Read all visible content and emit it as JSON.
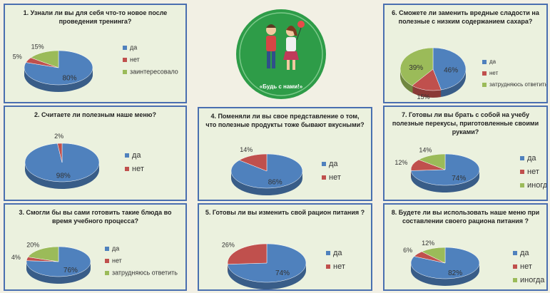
{
  "logo": {
    "caption": "«Будь с нами!»"
  },
  "chart_data": [
    {
      "type": "pie",
      "title": "1. Узнали ли вы для себя что-то новое после проведения тренинга?",
      "categories": [
        "да",
        "нет",
        "заинтересовало"
      ],
      "values": [
        80,
        5,
        15
      ],
      "value_labels": [
        "80%",
        "5%",
        "15%"
      ],
      "colors": [
        "#4f81bd",
        "#c0504d",
        "#9bbb59"
      ]
    },
    {
      "type": "pie",
      "title": "2. Считаете ли полезным наше меню?",
      "categories": [
        "да",
        "нет"
      ],
      "values": [
        98,
        2
      ],
      "value_labels": [
        "98%",
        "2%"
      ],
      "colors": [
        "#4f81bd",
        "#c0504d"
      ]
    },
    {
      "type": "pie",
      "title": "3. Смогли бы вы сами готовить такие блюда во время учебного процесса?",
      "categories": [
        "да",
        "нет",
        "затрудняюсь ответить"
      ],
      "values": [
        76,
        4,
        20
      ],
      "value_labels": [
        "76%",
        "4%",
        "20%"
      ],
      "colors": [
        "#4f81bd",
        "#c0504d",
        "#9bbb59"
      ]
    },
    {
      "type": "pie",
      "title": "4. Поменяли ли вы свое представление о том, что полезные продукты тоже бывают вкусными?",
      "categories": [
        "да",
        "нет"
      ],
      "values": [
        86,
        14
      ],
      "value_labels": [
        "86%",
        "14%"
      ],
      "colors": [
        "#4f81bd",
        "#c0504d"
      ]
    },
    {
      "type": "pie",
      "title": "5. Готовы ли вы изменить свой рацион питания ?",
      "categories": [
        "да",
        "нет"
      ],
      "values": [
        74,
        26
      ],
      "value_labels": [
        "74%",
        "26%"
      ],
      "colors": [
        "#4f81bd",
        "#c0504d"
      ]
    },
    {
      "type": "pie",
      "title": "6. Сможете ли заменить вредные сладости на полезные с низким содержанием сахара?",
      "categories": [
        "да",
        "нет",
        "затрудняюсь ответить"
      ],
      "values": [
        46,
        15,
        39
      ],
      "value_labels": [
        "46%",
        "15%",
        "39%"
      ],
      "colors": [
        "#4f81bd",
        "#c0504d",
        "#9bbb59"
      ]
    },
    {
      "type": "pie",
      "title": "7. Готовы ли вы брать с собой на учебу полезные перекусы, приготовленные своими руками?",
      "categories": [
        "да",
        "нет",
        "иногда"
      ],
      "values": [
        74,
        12,
        14
      ],
      "value_labels": [
        "74%",
        "12%",
        "14%"
      ],
      "colors": [
        "#4f81bd",
        "#c0504d",
        "#9bbb59"
      ]
    },
    {
      "type": "pie",
      "title": "8. Будете ли вы использовать наше меню при составлении своего рациона питания ?",
      "categories": [
        "да",
        "нет",
        "иногда"
      ],
      "values": [
        82,
        6,
        12
      ],
      "value_labels": [
        "82%",
        "6%",
        "12%"
      ],
      "colors": [
        "#4f81bd",
        "#c0504d",
        "#9bbb59"
      ]
    }
  ]
}
